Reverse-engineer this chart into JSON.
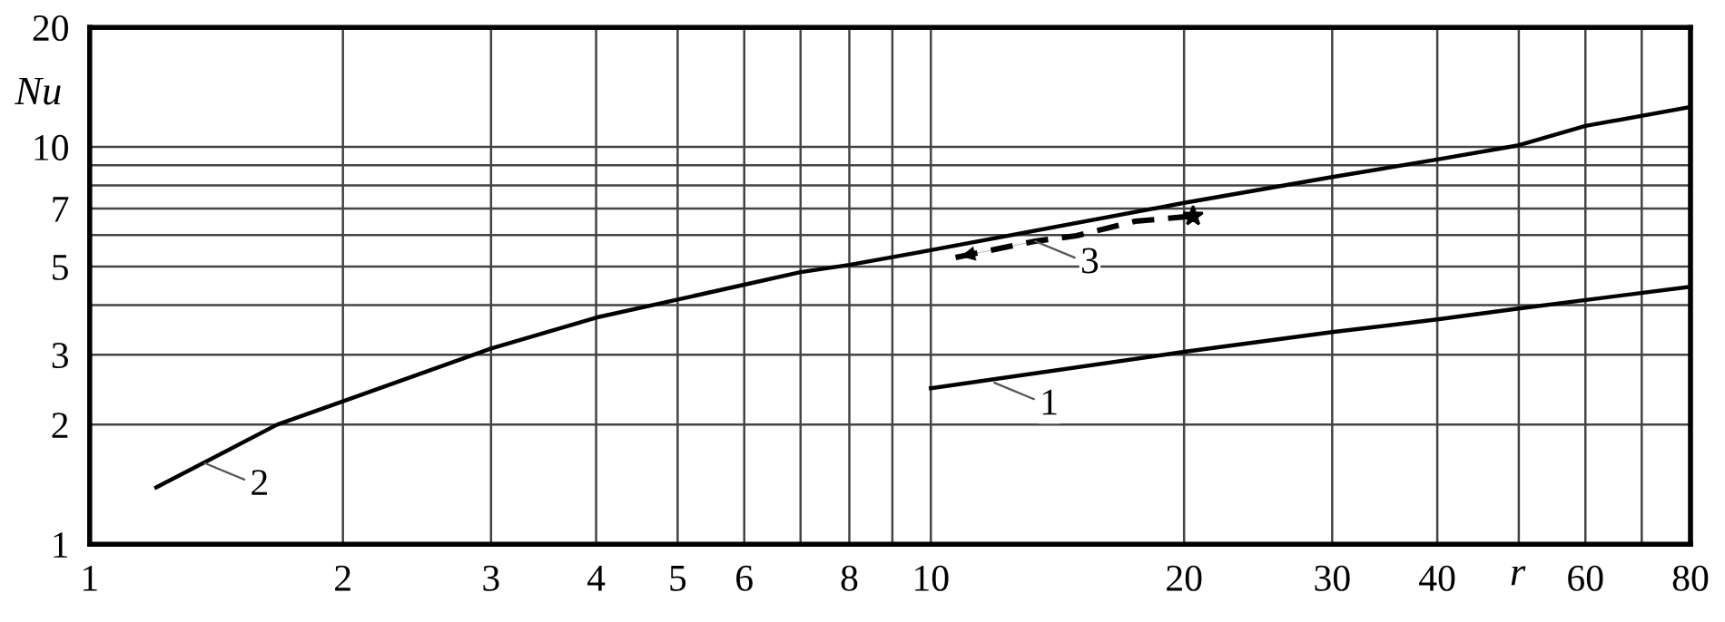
{
  "chart_data": {
    "type": "line",
    "xlabel": "r",
    "ylabel": "Nu",
    "log": "xy",
    "grid": true,
    "xlim": [
      1,
      80
    ],
    "ylim": [
      1,
      20
    ],
    "xticks": [
      1,
      2,
      3,
      4,
      5,
      6,
      {
        "value": 7,
        "label": null
      },
      8,
      {
        "value": 9,
        "label": null
      },
      10,
      20,
      30,
      40,
      {
        "value": 50,
        "label": null
      },
      60,
      {
        "value": 70,
        "label": null
      },
      80
    ],
    "yticks": [
      1,
      2,
      3,
      {
        "value": 4,
        "label": null
      },
      5,
      {
        "value": 6,
        "label": null
      },
      7,
      {
        "value": 8,
        "label": null
      },
      {
        "value": 9,
        "label": null
      },
      10,
      20
    ],
    "series": [
      {
        "color": "#000000",
        "line_style": "solid",
        "x": [
          10,
          20,
          30,
          40,
          50,
          80
        ],
        "values": [
          2.47,
          3.05,
          3.42,
          3.68,
          3.92,
          4.45
        ]
      },
      {
        "color": "#000000",
        "line_style": "solid",
        "x": [
          1.2,
          1.67,
          2,
          3,
          4,
          5,
          6,
          7,
          8,
          10,
          20,
          30,
          40,
          50,
          60,
          80
        ],
        "values": [
          1.39,
          2.0,
          2.29,
          3.11,
          3.72,
          4.13,
          4.5,
          4.84,
          5.05,
          5.5,
          7.23,
          8.4,
          9.3,
          10.1,
          11.3,
          12.6
        ]
      },
      {
        "color": "#000000",
        "line_style": "dashed",
        "x": [
          10.7,
          13.3,
          14.9,
          17.5,
          20.5
        ],
        "values": [
          5.27,
          5.79,
          5.98,
          6.5,
          6.7
        ]
      }
    ],
    "annotations": [
      {
        "text": "1",
        "x": 11.9,
        "y": 2.55
      },
      {
        "text": "2",
        "x": 1.37,
        "y": 1.6
      },
      {
        "text": "3",
        "x": 13.3,
        "y": 5.79
      }
    ]
  }
}
